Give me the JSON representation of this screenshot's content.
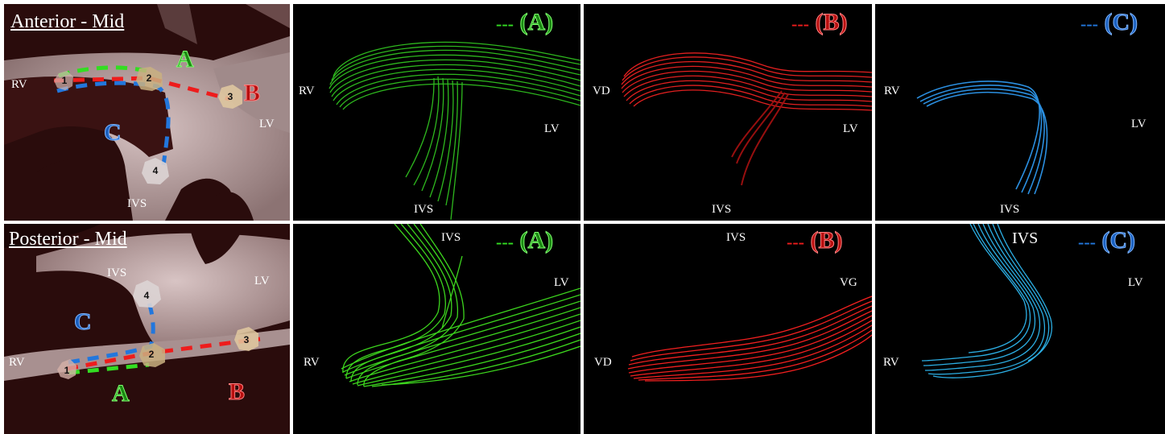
{
  "colors": {
    "A": "#33dd22",
    "B": "#ee1c1c",
    "C": "#2277dd"
  },
  "rows": [
    {
      "title": "Anterior - Mid",
      "ct": {
        "rv": "RV",
        "lv": "LV",
        "ivs": "IVS",
        "a": "A",
        "b": "B",
        "c": "C",
        "points": [
          "1",
          "2",
          "3",
          "4"
        ]
      },
      "panels": [
        {
          "labels": [
            "RV",
            "LV",
            "IVS"
          ],
          "legend_dash": "---",
          "legend": "(A)"
        },
        {
          "labels": [
            "VD",
            "LV",
            "IVS"
          ],
          "legend_dash": "---",
          "legend": "(B)"
        },
        {
          "labels": [
            "RV",
            "LV",
            "IVS"
          ],
          "legend_dash": "---",
          "legend": "(C)"
        }
      ]
    },
    {
      "title": "Posterior - Mid",
      "ct": {
        "rv": "RV",
        "lv": "LV",
        "ivs": "IVS",
        "a": "A",
        "b": "B",
        "c": "C",
        "points": [
          "1",
          "2",
          "3",
          "4"
        ]
      },
      "panels": [
        {
          "labels": [
            "IVS",
            "LV",
            "RV"
          ],
          "legend_dash": "---",
          "legend": "(A)"
        },
        {
          "labels": [
            "IVS",
            "VG",
            "VD"
          ],
          "legend_dash": "---",
          "legend": "(B)"
        },
        {
          "labels": [
            "IVS",
            "LV",
            "RV"
          ],
          "legend_dash": "---",
          "legend": "(C)"
        }
      ]
    }
  ]
}
